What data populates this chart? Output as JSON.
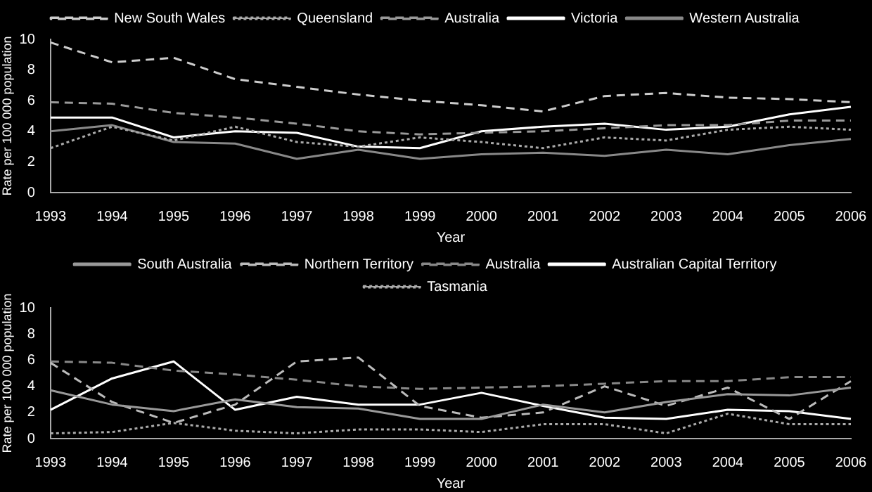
{
  "chart_data": [
    {
      "type": "line",
      "xlabel": "Year",
      "ylabel": "Rate per 100 000 population",
      "categories": [
        "1993",
        "1994",
        "1995",
        "1996",
        "1997",
        "1998",
        "1999",
        "2000",
        "2001",
        "2002",
        "2003",
        "2004",
        "2005",
        "2006"
      ],
      "ylim": [
        0,
        10
      ],
      "yticks": [
        0,
        2,
        4,
        6,
        8,
        10
      ],
      "grid": false,
      "legend": "top",
      "marker": "none",
      "series": [
        {
          "name": "New South Wales",
          "color": "#cccccc",
          "line_style": "dashed",
          "values": [
            9.8,
            8.5,
            8.8,
            7.4,
            6.9,
            6.4,
            6.0,
            5.7,
            5.3,
            6.3,
            6.5,
            6.2,
            6.1,
            5.9
          ]
        },
        {
          "name": "Queensland",
          "color": "#aaaaaa",
          "line_style": "dotted",
          "values": [
            2.9,
            4.3,
            3.4,
            4.3,
            3.3,
            3.0,
            3.6,
            3.3,
            2.9,
            3.6,
            3.4,
            4.1,
            4.3,
            4.1
          ]
        },
        {
          "name": "Australia",
          "color": "#999999",
          "line_style": "dashed",
          "values": [
            5.9,
            5.8,
            5.2,
            4.9,
            4.5,
            4.0,
            3.8,
            3.9,
            4.0,
            4.2,
            4.4,
            4.4,
            4.7,
            4.7
          ]
        },
        {
          "name": "Victoria",
          "color": "#ffffff",
          "line_style": "solid",
          "values": [
            4.9,
            4.9,
            3.6,
            4.0,
            3.9,
            3.0,
            2.9,
            4.0,
            4.3,
            4.5,
            4.1,
            4.3,
            5.1,
            5.6
          ]
        },
        {
          "name": "Western Australia",
          "color": "#888888",
          "line_style": "solid",
          "values": [
            4.0,
            4.4,
            3.3,
            3.2,
            2.2,
            2.8,
            2.2,
            2.5,
            2.6,
            2.4,
            2.8,
            2.5,
            3.1,
            3.5
          ]
        }
      ]
    },
    {
      "type": "line",
      "xlabel": "Year",
      "ylabel": "Rate per 100 000 population",
      "categories": [
        "1993",
        "1994",
        "1995",
        "1996",
        "1997",
        "1998",
        "1999",
        "2000",
        "2001",
        "2002",
        "2003",
        "2004",
        "2005",
        "2006"
      ],
      "ylim": [
        0,
        10
      ],
      "yticks": [
        0,
        2,
        4,
        6,
        8,
        10
      ],
      "grid": false,
      "legend": "top",
      "marker": "none",
      "series": [
        {
          "name": "South Australia",
          "color": "#999999",
          "line_style": "solid",
          "values": [
            3.7,
            2.6,
            2.1,
            3.0,
            2.4,
            2.3,
            1.5,
            1.5,
            2.6,
            2.0,
            2.8,
            3.4,
            3.3,
            3.9
          ]
        },
        {
          "name": "Northern Territory",
          "color": "#bbbbbb",
          "line_style": "dashed",
          "values": [
            5.8,
            2.8,
            1.2,
            2.6,
            5.9,
            6.2,
            2.5,
            1.6,
            2.0,
            4.0,
            2.5,
            3.9,
            1.5,
            4.4
          ]
        },
        {
          "name": "Australia",
          "color": "#888888",
          "line_style": "dashed",
          "values": [
            5.9,
            5.8,
            5.2,
            4.9,
            4.5,
            4.0,
            3.8,
            3.9,
            4.0,
            4.2,
            4.4,
            4.4,
            4.7,
            4.7
          ]
        },
        {
          "name": "Australian Capital Territory",
          "color": "#ffffff",
          "line_style": "solid",
          "values": [
            2.2,
            4.6,
            5.9,
            2.2,
            3.2,
            2.6,
            2.6,
            3.5,
            2.5,
            1.6,
            1.5,
            2.2,
            2.1,
            1.5
          ]
        },
        {
          "name": "Tasmania",
          "color": "#aaaaaa",
          "line_style": "dotted",
          "values": [
            0.4,
            0.5,
            1.2,
            0.6,
            0.4,
            0.7,
            0.7,
            0.5,
            1.1,
            1.1,
            0.4,
            1.9,
            1.1,
            1.1
          ]
        }
      ]
    }
  ]
}
